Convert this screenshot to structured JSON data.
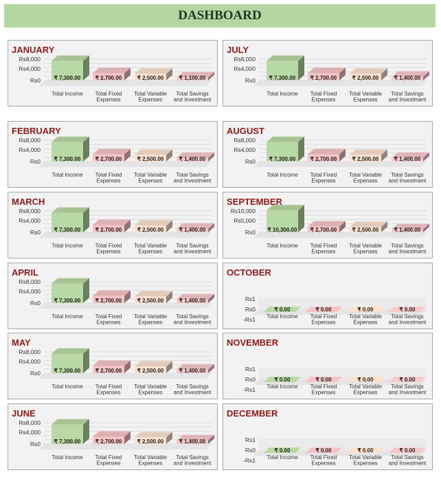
{
  "dashboard": {
    "title": "DASHBOARD"
  },
  "colors": {
    "income": "#b9d9a4",
    "fixed": "#f8c3c6",
    "variable": "#fbe2cf",
    "savings": "#f8c9cc",
    "title": "#8b1a1a",
    "panel_bg": "#f2f2f2"
  },
  "categories": [
    "Total Income",
    "Total Fixed Expenses",
    "Total Variable Expenses",
    "Total Savings and Investment"
  ],
  "category_lines": [
    [
      "Total Income"
    ],
    [
      "Total Fixed",
      "Expenses"
    ],
    [
      "Total Variable",
      "Expenses"
    ],
    [
      "Total Savings",
      "and Investment"
    ]
  ],
  "chart_data": [
    {
      "type": "bar",
      "title": "JANUARY",
      "categories": [
        "Total Income",
        "Total Fixed Expenses",
        "Total Variable Expenses",
        "Total Savings and Investment"
      ],
      "values": [
        7300,
        2700,
        2500,
        1100
      ],
      "value_labels": [
        "₹ 7,300.00",
        "₹ 2,700.00",
        "₹ 2,500.00",
        "₹ 1,100.00"
      ],
      "y_ticks": [
        "Rs8,000",
        "Rs4,000",
        "Rs0"
      ],
      "ylim": [
        0,
        8000
      ]
    },
    {
      "type": "bar",
      "title": "JULY",
      "categories": [
        "Total Income",
        "Total Fixed Expenses",
        "Total Variable Expenses",
        "Total Savings and Investment"
      ],
      "values": [
        7300,
        2700,
        2500,
        1400
      ],
      "value_labels": [
        "₹ 7,300.00",
        "₹ 2,700.00",
        "₹ 2,500.00",
        "₹ 1,400.00"
      ],
      "y_ticks": [
        "Rs8,000",
        "Rs4,000",
        "Rs0"
      ],
      "ylim": [
        0,
        8000
      ]
    },
    {
      "type": "bar",
      "title": "FEBRUARY",
      "categories": [
        "Total Income",
        "Total Fixed Expenses",
        "Total Variable Expenses",
        "Total Savings and Investment"
      ],
      "values": [
        7300,
        2700,
        2500,
        1400
      ],
      "value_labels": [
        "₹ 7,300.00",
        "₹ 2,700.00",
        "₹ 2,500.00",
        "₹ 1,400.00"
      ],
      "y_ticks": [
        "Rs8,000",
        "Rs4,000",
        "Rs0"
      ],
      "ylim": [
        0,
        8000
      ]
    },
    {
      "type": "bar",
      "title": "AUGUST",
      "categories": [
        "Total Income",
        "Total Fixed Expenses",
        "Total Variable Expenses",
        "Total Savings and Investment"
      ],
      "values": [
        7300,
        2700,
        2500,
        1400
      ],
      "value_labels": [
        "₹ 7,300.00",
        "₹ 2,700.00",
        "₹ 2,500.00",
        "₹ 1,400.00"
      ],
      "y_ticks": [
        "Rs8,000",
        "Rs4,000",
        "Rs0"
      ],
      "ylim": [
        0,
        8000
      ]
    },
    {
      "type": "bar",
      "title": "MARCH",
      "categories": [
        "Total Income",
        "Total Fixed Expenses",
        "Total Variable Expenses",
        "Total Savings and Investment"
      ],
      "values": [
        7300,
        2700,
        2500,
        1400
      ],
      "value_labels": [
        "₹ 7,300.00",
        "₹ 2,700.00",
        "₹ 2,500.00",
        "₹ 1,400.00"
      ],
      "y_ticks": [
        "Rs8,000",
        "Rs4,000",
        "Rs0"
      ],
      "ylim": [
        0,
        8000
      ]
    },
    {
      "type": "bar",
      "title": "SEPTEMBER",
      "categories": [
        "Total Income",
        "Total Fixed Expenses",
        "Total Variable Expenses",
        "Total Savings and Investment"
      ],
      "values": [
        10300,
        2700,
        2500,
        1400
      ],
      "value_labels": [
        "₹ 10,300.00",
        "₹ 2,700.00",
        "₹ 2,500.00",
        "₹ 1,400.00"
      ],
      "y_ticks": [
        "Rs10,000",
        "Rs5,000",
        "Rs0"
      ],
      "ylim": [
        0,
        10000
      ]
    },
    {
      "type": "bar",
      "title": "APRIL",
      "categories": [
        "Total Income",
        "Total Fixed Expenses",
        "Total Variable Expenses",
        "Total Savings and Investment"
      ],
      "values": [
        7300,
        2700,
        2500,
        1400
      ],
      "value_labels": [
        "₹ 7,300.00",
        "₹ 2,700.00",
        "₹ 2,500.00",
        "₹ 1,400.00"
      ],
      "y_ticks": [
        "Rs8,000",
        "Rs4,000",
        "Rs0"
      ],
      "ylim": [
        0,
        8000
      ]
    },
    {
      "type": "bar",
      "title": "OCTOBER",
      "categories": [
        "Total Income",
        "Total Fixed Expenses",
        "Total Variable Expenses",
        "Total Savings and Investment"
      ],
      "values": [
        0,
        0,
        0,
        0
      ],
      "value_labels": [
        "₹ 0.00",
        "₹ 0.00",
        "₹ 0.00",
        "₹ 0.00"
      ],
      "y_ticks": [
        "Rs1",
        "Rs0",
        "-Rs1"
      ],
      "ylim": [
        -1,
        1
      ]
    },
    {
      "type": "bar",
      "title": "MAY",
      "categories": [
        "Total Income",
        "Total Fixed Expenses",
        "Total Variable Expenses",
        "Total Savings and Investment"
      ],
      "values": [
        7300,
        2700,
        2500,
        1400
      ],
      "value_labels": [
        "₹ 7,300.00",
        "₹ 2,700.00",
        "₹ 2,500.00",
        "₹ 1,400.00"
      ],
      "y_ticks": [
        "Rs8,000",
        "Rs4,000",
        "Rs0"
      ],
      "ylim": [
        0,
        8000
      ]
    },
    {
      "type": "bar",
      "title": "NOVEMBER",
      "categories": [
        "Total Income",
        "Total Fixed Expenses",
        "Total Variable Expenses",
        "Total Savings and Investment"
      ],
      "values": [
        0,
        0,
        0,
        0
      ],
      "value_labels": [
        "₹ 0.00",
        "₹ 0.00",
        "₹ 0.00",
        "₹ 0.00"
      ],
      "y_ticks": [
        "Rs1",
        "Rs0",
        "-Rs1"
      ],
      "ylim": [
        -1,
        1
      ]
    },
    {
      "type": "bar",
      "title": "JUNE",
      "categories": [
        "Total Income",
        "Total Fixed Expenses",
        "Total Variable Expenses",
        "Total Savings and Investment"
      ],
      "values": [
        7300,
        2700,
        2500,
        1400
      ],
      "value_labels": [
        "₹ 7,300.00",
        "₹ 2,700.00",
        "₹ 2,500.00",
        "₹ 1,400.00"
      ],
      "y_ticks": [
        "Rs8,000",
        "Rs4,000",
        "Rs0"
      ],
      "ylim": [
        0,
        8000
      ]
    },
    {
      "type": "bar",
      "title": "DECEMBER",
      "categories": [
        "Total Income",
        "Total Fixed Expenses",
        "Total Variable Expenses",
        "Total Savings and Investment"
      ],
      "values": [
        0,
        0,
        0,
        0
      ],
      "value_labels": [
        "₹ 0.00",
        "₹ 0.00",
        "₹ 0.00",
        "₹ 0.00"
      ],
      "y_ticks": [
        "Rs1",
        "Rs0",
        "-Rs1"
      ],
      "ylim": [
        -1,
        1
      ]
    }
  ]
}
